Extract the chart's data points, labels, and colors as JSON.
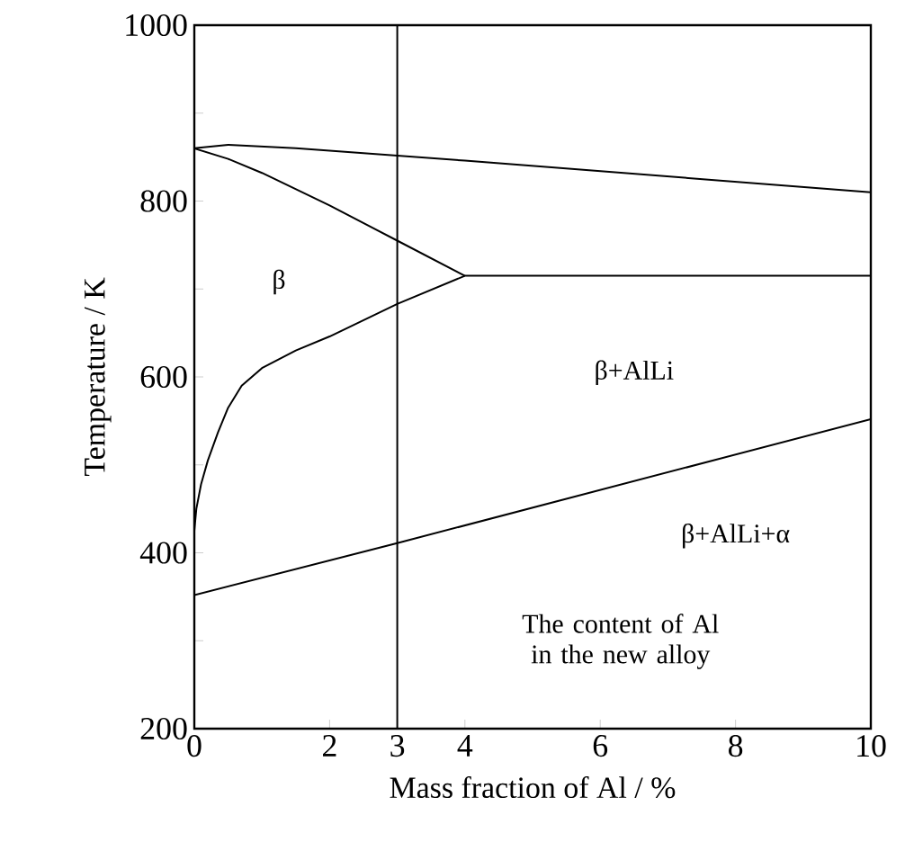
{
  "chart_data": {
    "type": "line",
    "xlabel": "Mass fraction of Al / %",
    "ylabel": "Temperature / K",
    "series": [
      {
        "color": "#000000",
        "x": [
          0,
          0.5,
          1.5,
          4,
          7,
          10
        ],
        "values": [
          860,
          864,
          860,
          846,
          828,
          810
        ]
      },
      {
        "color": "#000000",
        "x": [
          0,
          0.5,
          1,
          2,
          3,
          4
        ],
        "values": [
          860,
          848,
          832,
          795,
          755,
          715
        ]
      },
      {
        "color": "#000000",
        "x": [
          0,
          0.03,
          0.1,
          0.2,
          0.35,
          0.5,
          0.7,
          1,
          1.5,
          2,
          3,
          4,
          10
        ],
        "values": [
          425,
          450,
          478,
          505,
          537,
          565,
          590,
          610,
          630,
          646,
          683,
          715,
          715
        ]
      },
      {
        "color": "#000000",
        "x": [
          0,
          3,
          10
        ],
        "values": [
          352,
          411,
          552
        ]
      }
    ],
    "ref_lines": [
      {
        "axis": "x",
        "value": 3,
        "label": "The content of Al in the new alloy",
        "color": "#000000"
      }
    ],
    "annotations": [
      "β",
      "β+AlLi",
      "β+AlLi+α"
    ],
    "marker": "none",
    "line_style": "solid",
    "xlim": [
      0,
      10
    ],
    "ylim": [
      200,
      1000
    ],
    "xticks": [
      0,
      2,
      3,
      4,
      6,
      8,
      10
    ],
    "yticks": [
      200,
      {
        "value": 300,
        "label": null
      },
      400,
      {
        "value": 500,
        "label": null
      },
      600,
      {
        "value": 700,
        "label": null
      },
      800,
      {
        "value": 900,
        "label": null
      },
      1000
    ]
  }
}
